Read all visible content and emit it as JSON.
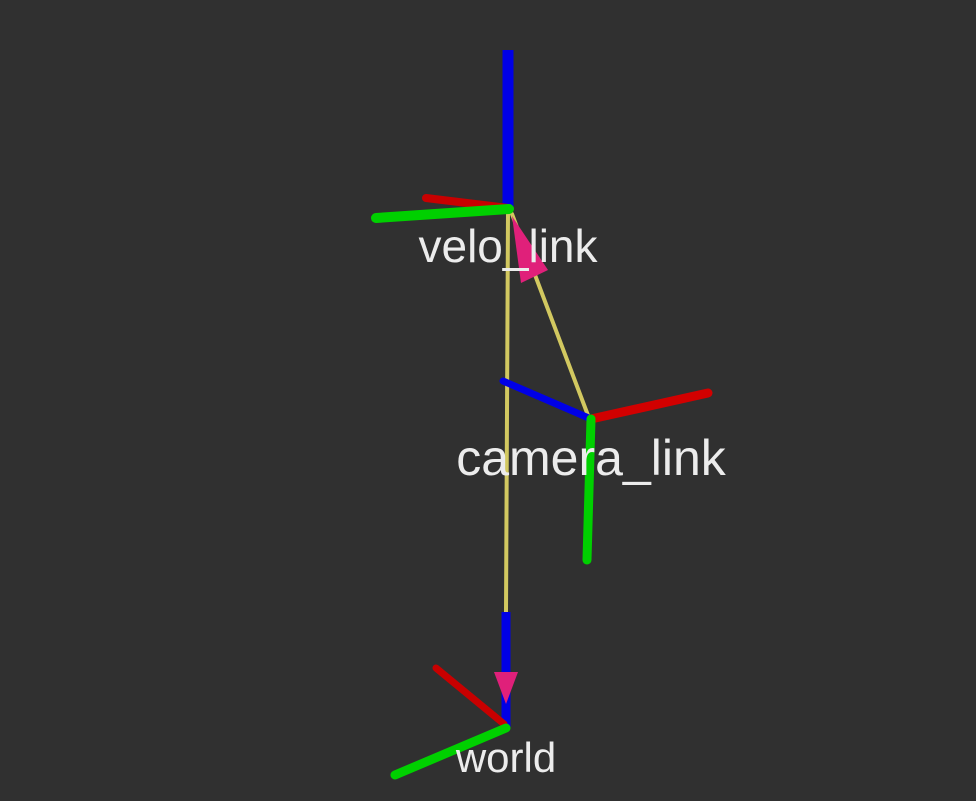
{
  "colors": {
    "background": "#303030",
    "x_axis": "#c80000",
    "y_axis": "#00d000",
    "z_axis": "#0000e6",
    "tf_link": "#d2c860",
    "tf_arrow": "#e0207a",
    "label": "#ececec"
  },
  "frames": [
    {
      "id": "velo",
      "label": "velo_link"
    },
    {
      "id": "camera",
      "label": "camera_link"
    },
    {
      "id": "world",
      "label": "world"
    }
  ]
}
